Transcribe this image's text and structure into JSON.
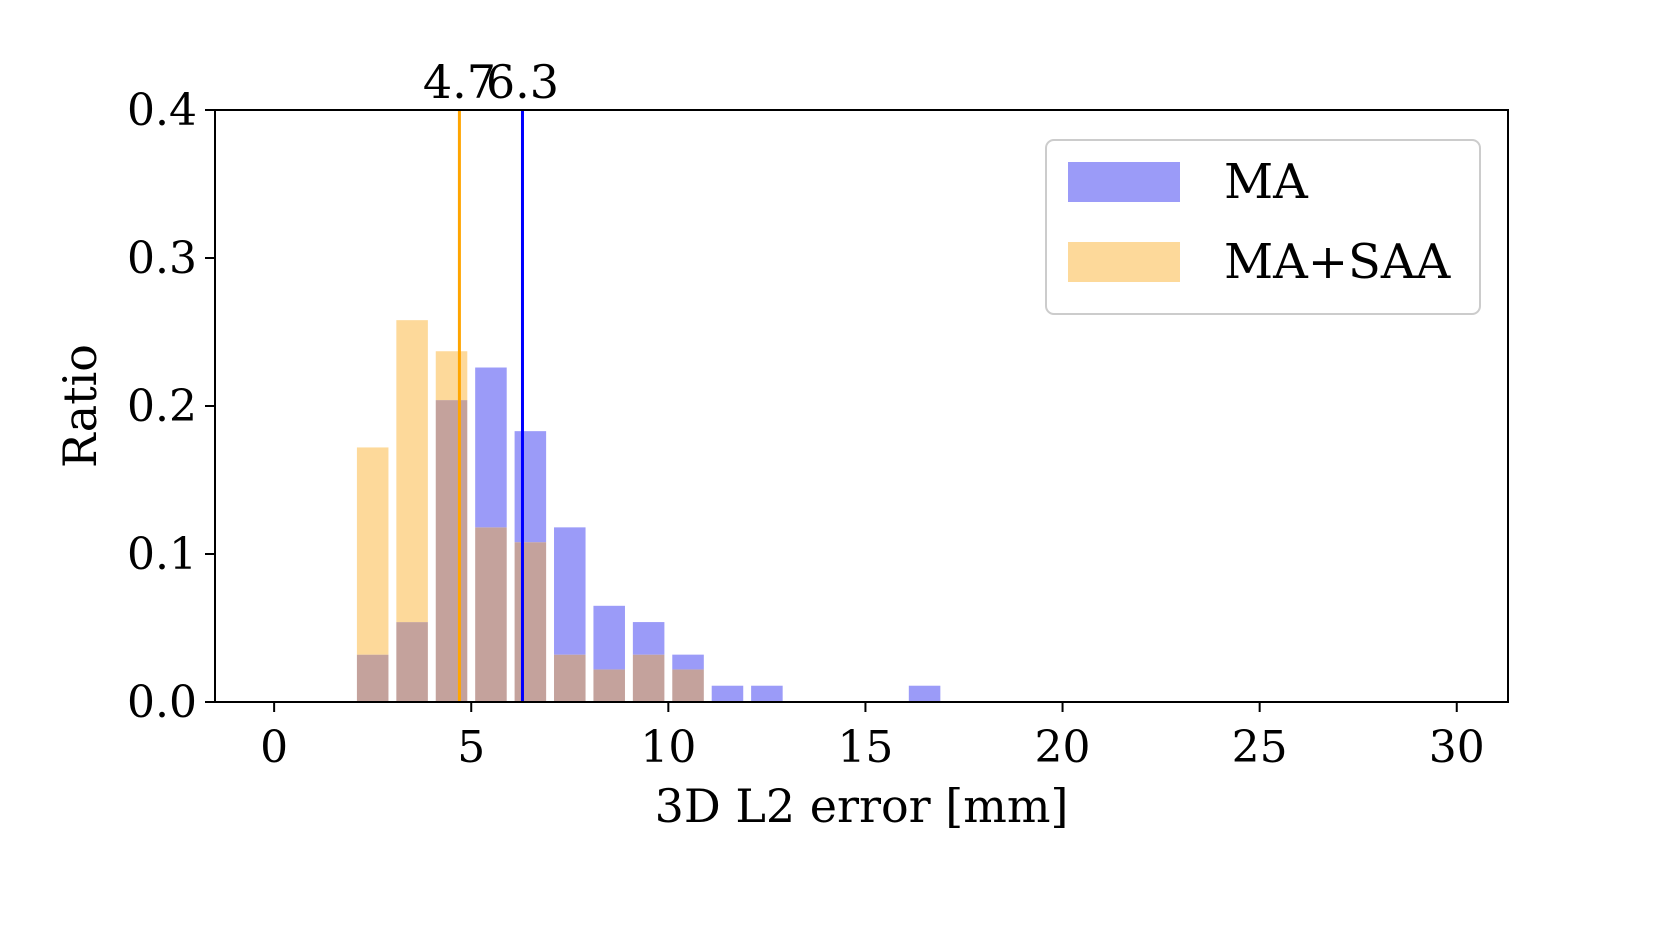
{
  "chart_data": {
    "type": "bar",
    "xlabel": "3D L2 error [mm]",
    "ylabel": "Ratio",
    "xlim": [
      -1.5,
      31.3
    ],
    "ylim": [
      0.0,
      0.4
    ],
    "x_ticks": [
      0,
      5,
      10,
      15,
      20,
      25,
      30
    ],
    "x_tick_labels": [
      "0",
      "5",
      "10",
      "15",
      "20",
      "25",
      "30"
    ],
    "y_ticks": [
      0.0,
      0.1,
      0.2,
      0.3,
      0.4
    ],
    "y_tick_labels": [
      "0.0",
      "0.1",
      "0.2",
      "0.3",
      "0.4"
    ],
    "grid": false,
    "legend_position": "top-right",
    "bar_width": 0.8,
    "overlap_color": "#c4a29c",
    "series": [
      {
        "name": "MA",
        "color": "#9b9bf8",
        "line_color": "#0000ff",
        "bins": [
          2.5,
          3.5,
          4.5,
          5.5,
          6.5,
          7.5,
          8.5,
          9.5,
          10.5,
          11.5,
          12.5,
          16.5
        ],
        "values": [
          0.032,
          0.054,
          0.204,
          0.226,
          0.183,
          0.118,
          0.065,
          0.054,
          0.032,
          0.011,
          0.011,
          0.011
        ],
        "mean": 6.3,
        "mean_label": "6.3"
      },
      {
        "name": "MA+SAA",
        "color": "#fdd99a",
        "line_color": "#ffa500",
        "bins": [
          2.5,
          3.5,
          4.5,
          5.5,
          6.5,
          7.5,
          8.5,
          9.5,
          10.5
        ],
        "values": [
          0.172,
          0.258,
          0.237,
          0.118,
          0.108,
          0.032,
          0.022,
          0.032,
          0.022
        ],
        "mean": 4.7,
        "mean_label": "4.7"
      }
    ]
  }
}
